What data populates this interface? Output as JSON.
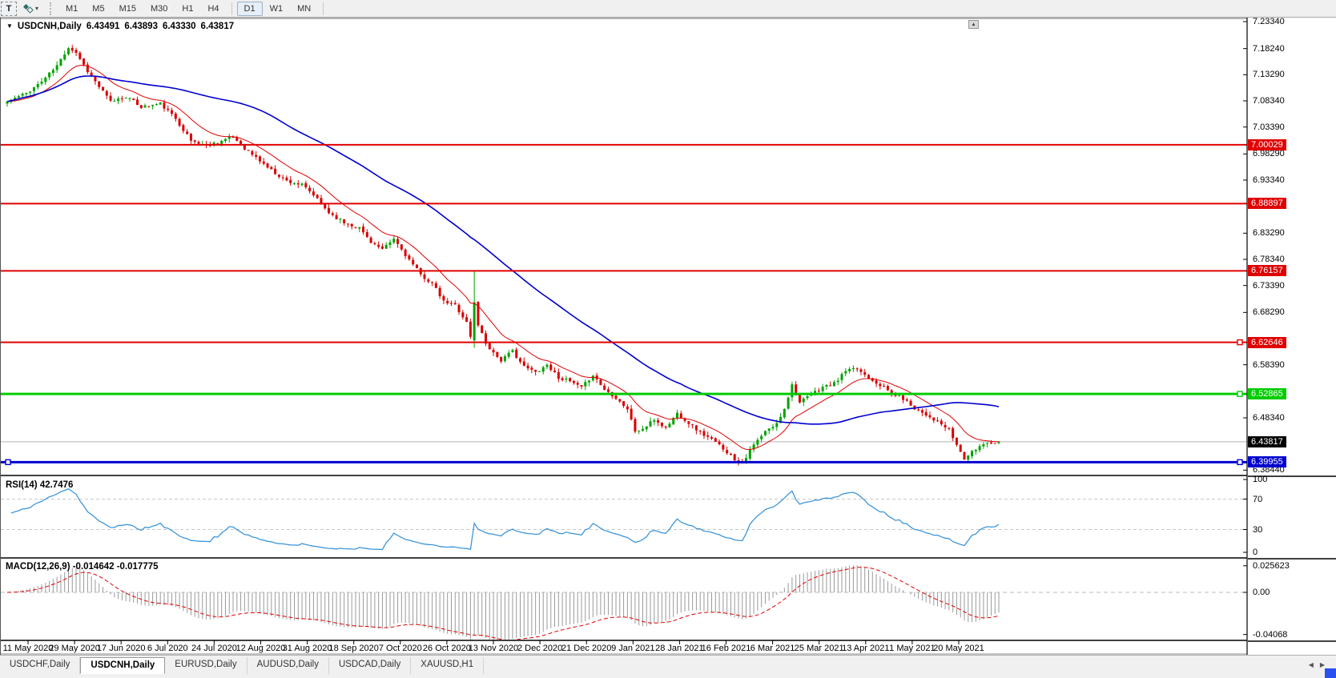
{
  "toolbar": {
    "t_tool_label": "T",
    "timeframes": [
      "M1",
      "M5",
      "M15",
      "M30",
      "H1",
      "H4",
      "D1",
      "W1",
      "MN"
    ],
    "active_timeframe": "D1"
  },
  "chart_header": {
    "symbol": "USDCNH,Daily",
    "open": "6.43491",
    "high": "6.43893",
    "low": "6.43330",
    "close": "6.43817"
  },
  "indicators": {
    "rsi_label": "RSI(14) 42.7476",
    "macd_label": "MACD(12,26,9) -0.014642 -0.017775"
  },
  "tabs": [
    {
      "label": "USDCHF,Daily",
      "active": false
    },
    {
      "label": "USDCNH,Daily",
      "active": true
    },
    {
      "label": "EURUSD,Daily",
      "active": false
    },
    {
      "label": "AUDUSD,Daily",
      "active": false
    },
    {
      "label": "USDCAD,Daily",
      "active": false
    },
    {
      "label": "XAUUSD,H1",
      "active": false
    }
  ],
  "colors": {
    "bull": "#00A300",
    "bear": "#D80000",
    "ma_fast": "#E00000",
    "ma_slow": "#0000D0",
    "hline_red": "#E00000",
    "hline_green": "#00CC00",
    "hline_blue": "#0000D0",
    "rsi_line": "#3E96D9",
    "rsi_level": "#C8C8C8",
    "macd_hist": "#9A9A9A",
    "macd_signal": "#E00000",
    "current_price_line": "#B4B4B4",
    "current_price_bg": "#000000"
  },
  "chart_data": {
    "type": "candlestick",
    "symbol": "USDCNH",
    "timeframe": "Daily",
    "current_ohlc": {
      "open": 6.43491,
      "high": 6.43893,
      "low": 6.4333,
      "close": 6.43817
    },
    "price_axis_ticks": [
      "7.23340",
      "7.18240",
      "7.13290",
      "7.08340",
      "7.03390",
      "6.98290",
      "6.93340",
      "6.83290",
      "6.78340",
      "6.73390",
      "6.68290",
      "6.58390",
      "6.48340",
      "6.38440"
    ],
    "visible_price_range": [
      6.3844,
      7.2334
    ],
    "x_axis_dates": [
      "11 May 2020",
      "29 May 2020",
      "17 Jun 2020",
      "6 Jul 2020",
      "24 Jul 2020",
      "12 Aug 2020",
      "31 Aug 2020",
      "18 Sep 2020",
      "7 Oct 2020",
      "26 Oct 2020",
      "13 Nov 2020",
      "2 Dec 2020",
      "21 Dec 2020",
      "9 Jan 2021",
      "28 Jan 2021",
      "16 Feb 2021",
      "6 Mar 2021",
      "25 Mar 2021",
      "13 Apr 2021",
      "1 May 2021",
      "20 May 2021"
    ],
    "horizontal_lines": [
      {
        "price": 7.00029,
        "label": "7.00029",
        "color": "red",
        "width": 2,
        "handles": []
      },
      {
        "price": 6.88897,
        "label": "6.88897",
        "color": "red",
        "width": 2,
        "handles": []
      },
      {
        "price": 6.76157,
        "label": "6.76157",
        "color": "red",
        "width": 2,
        "handles": []
      },
      {
        "price": 6.62646,
        "label": "6.62646",
        "color": "red",
        "width": 2,
        "handles": [
          "right"
        ]
      },
      {
        "price": 6.52865,
        "label": "6.52865",
        "color": "green",
        "width": 3,
        "handles": [
          "right"
        ]
      },
      {
        "price": 6.39955,
        "label": "6.39955",
        "color": "blue",
        "width": 3,
        "handles": [
          "left",
          "right"
        ]
      }
    ],
    "current_price": 6.43817,
    "current_price_label": "6.43817",
    "candle_count": 260,
    "close_anchors": [
      [
        0,
        7.082
      ],
      [
        5,
        7.098
      ],
      [
        9,
        7.12
      ],
      [
        13,
        7.15
      ],
      [
        16,
        7.185
      ],
      [
        18,
        7.175
      ],
      [
        21,
        7.14
      ],
      [
        24,
        7.11
      ],
      [
        27,
        7.082
      ],
      [
        31,
        7.092
      ],
      [
        35,
        7.072
      ],
      [
        40,
        7.078
      ],
      [
        44,
        7.05
      ],
      [
        48,
        7.008
      ],
      [
        52,
        6.999
      ],
      [
        56,
        7.008
      ],
      [
        59,
        7.015
      ],
      [
        62,
        6.994
      ],
      [
        66,
        6.97
      ],
      [
        69,
        6.952
      ],
      [
        73,
        6.932
      ],
      [
        77,
        6.924
      ],
      [
        80,
        6.905
      ],
      [
        84,
        6.872
      ],
      [
        88,
        6.853
      ],
      [
        92,
        6.843
      ],
      [
        95,
        6.817
      ],
      [
        98,
        6.801
      ],
      [
        101,
        6.822
      ],
      [
        104,
        6.792
      ],
      [
        108,
        6.754
      ],
      [
        111,
        6.738
      ],
      [
        114,
        6.703
      ],
      [
        117,
        6.697
      ],
      [
        120,
        6.664
      ],
      [
        121,
        6.637
      ],
      [
        122,
        6.702
      ],
      [
        123,
        6.66
      ],
      [
        125,
        6.625
      ],
      [
        127,
        6.607
      ],
      [
        129,
        6.592
      ],
      [
        132,
        6.61
      ],
      [
        135,
        6.58
      ],
      [
        138,
        6.57
      ],
      [
        141,
        6.584
      ],
      [
        144,
        6.56
      ],
      [
        147,
        6.552
      ],
      [
        150,
        6.54
      ],
      [
        153,
        6.565
      ],
      [
        156,
        6.537
      ],
      [
        159,
        6.522
      ],
      [
        162,
        6.5
      ],
      [
        164,
        6.458
      ],
      [
        166,
        6.462
      ],
      [
        169,
        6.48
      ],
      [
        172,
        6.464
      ],
      [
        175,
        6.492
      ],
      [
        178,
        6.474
      ],
      [
        181,
        6.456
      ],
      [
        184,
        6.442
      ],
      [
        187,
        6.426
      ],
      [
        190,
        6.405
      ],
      [
        192,
        6.399
      ],
      [
        195,
        6.432
      ],
      [
        198,
        6.457
      ],
      [
        201,
        6.472
      ],
      [
        203,
        6.502
      ],
      [
        205,
        6.546
      ],
      [
        207,
        6.512
      ],
      [
        210,
        6.527
      ],
      [
        213,
        6.542
      ],
      [
        216,
        6.548
      ],
      [
        219,
        6.572
      ],
      [
        222,
        6.576
      ],
      [
        225,
        6.56
      ],
      [
        228,
        6.546
      ],
      [
        231,
        6.53
      ],
      [
        234,
        6.52
      ],
      [
        237,
        6.502
      ],
      [
        240,
        6.49
      ],
      [
        243,
        6.476
      ],
      [
        246,
        6.46
      ],
      [
        248,
        6.432
      ],
      [
        250,
        6.406
      ],
      [
        252,
        6.418
      ],
      [
        254,
        6.43
      ],
      [
        256,
        6.438
      ],
      [
        258,
        6.434
      ],
      [
        259,
        6.43817
      ]
    ],
    "special_candles": [
      {
        "i": 122,
        "o": 6.63,
        "h": 6.761,
        "l": 6.616,
        "c": 6.702
      }
    ],
    "moving_averages": [
      {
        "name": "fast-ma",
        "type": "ema",
        "period": 13
      },
      {
        "name": "slow-ma",
        "type": "sma",
        "period": 55
      }
    ],
    "rsi": {
      "period": 14,
      "current": 42.7476,
      "levels": [
        70,
        30
      ],
      "axis_ticks": [
        100,
        70,
        30,
        0
      ]
    },
    "macd": {
      "fast": 12,
      "slow": 26,
      "signal": 9,
      "current_macd": -0.014642,
      "current_signal": -0.017775,
      "axis_ticks": [
        {
          "v": 0.025623,
          "label": "0.025623"
        },
        {
          "v": 0,
          "label": "0.00"
        },
        {
          "v": -0.04068,
          "label": "-0.04068"
        }
      ]
    }
  }
}
